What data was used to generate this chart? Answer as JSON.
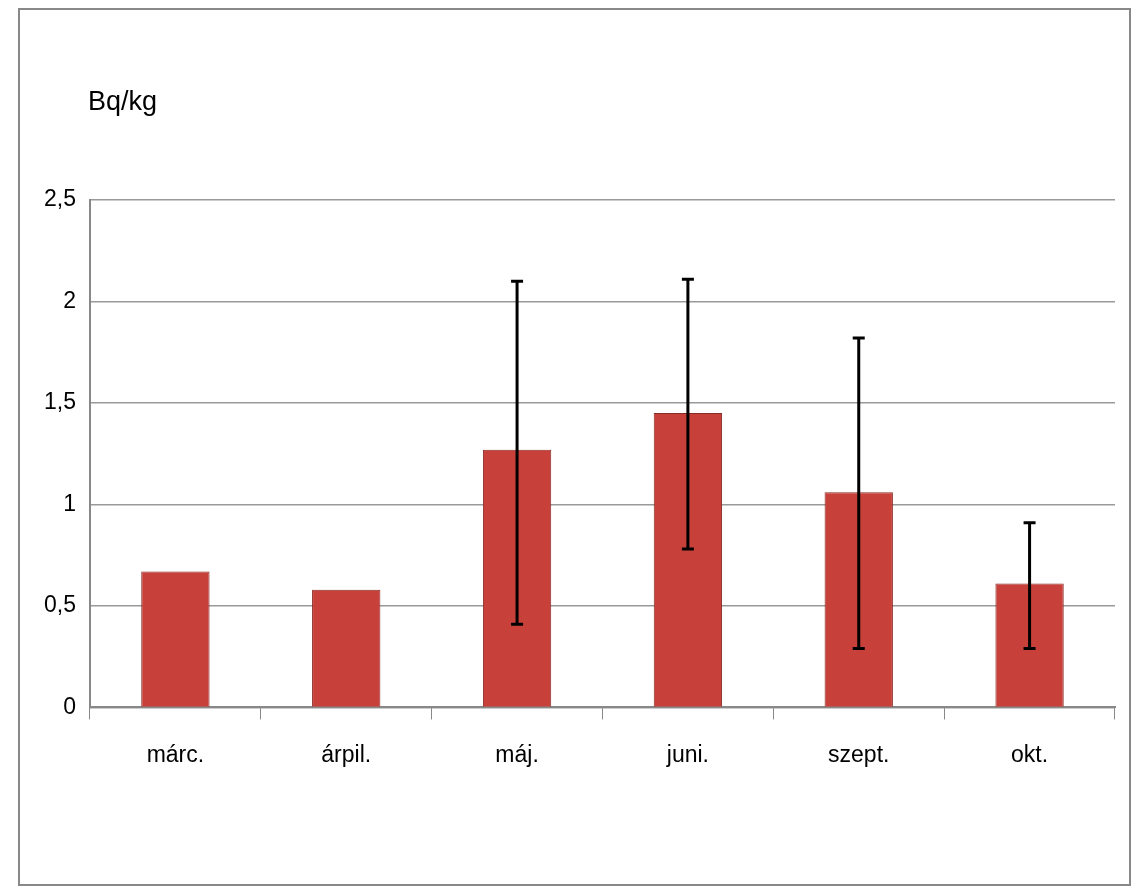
{
  "chart_data": {
    "type": "bar",
    "ylabel": "Bq/kg",
    "categories": [
      "márc.",
      "árpil.",
      "máj.",
      "juni.",
      "szept.",
      "okt."
    ],
    "values": [
      0.67,
      0.58,
      1.27,
      1.45,
      1.06,
      0.61
    ],
    "errors": [
      null,
      null,
      [
        0.41,
        2.1
      ],
      [
        0.78,
        2.11
      ],
      [
        0.29,
        1.82
      ],
      [
        0.29,
        0.91
      ]
    ],
    "color": "#c8403a",
    "ylim": [
      0,
      2.5
    ],
    "yticks": [
      0,
      {
        "value": 0.5,
        "label": "0,5"
      },
      1,
      {
        "value": 1.5,
        "label": "1,5"
      },
      2,
      {
        "value": 2.5,
        "label": "2,5"
      }
    ],
    "grid": "y"
  }
}
